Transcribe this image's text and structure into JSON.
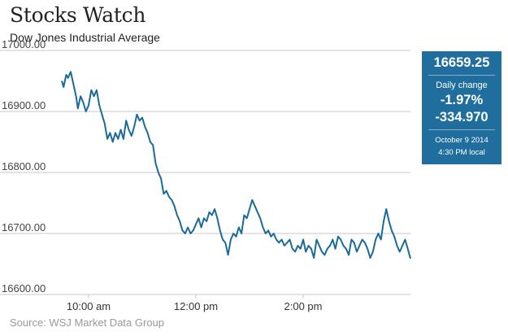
{
  "header": {
    "title": "Stocks Watch",
    "subtitle": "Dow Jones Industrial Average"
  },
  "info_box": {
    "value": "16659.25",
    "change_label": "Daily change",
    "change_percent": "-1.97%",
    "change_points": "-334.970",
    "date": "October 9 2014",
    "time": "4:30 PM local",
    "background_color": "#1f6e9e"
  },
  "source": "Source: WSJ Market Data Group",
  "chart_data": {
    "type": "line",
    "title": "",
    "xlabel": "",
    "ylabel": "",
    "ylim": [
      16600,
      17000
    ],
    "xlim": [
      "9:30 AM",
      "4:00 PM"
    ],
    "grid": "horizontal",
    "legend": "none",
    "line_color": "#1a6a9a",
    "yticks": [
      {
        "value": 17000,
        "label": "17000.00"
      },
      {
        "value": 16900,
        "label": "16900.00"
      },
      {
        "value": 16800,
        "label": "16800.00"
      },
      {
        "value": 16700,
        "label": "16700.00"
      },
      {
        "value": 16600,
        "label": "16600.00"
      }
    ],
    "xticks": [
      {
        "value": "10:00 AM",
        "label": "10:00 am"
      },
      {
        "value": "12:00 PM",
        "label": "12:00 pm"
      },
      {
        "value": "2:00 PM",
        "label": "2:00 pm"
      }
    ],
    "series": [
      {
        "x": [
          "9:30 AM",
          "9:32 AM",
          "9:35 AM",
          "9:37 AM",
          "9:40 AM",
          "9:43 AM",
          "9:46 AM",
          "9:48 AM",
          "9:51 AM",
          "9:54 AM",
          "9:57 AM",
          "10:00 AM",
          "10:03 AM",
          "10:06 AM",
          "10:09 AM",
          "10:12 AM",
          "10:15 AM",
          "10:18 AM",
          "10:21 AM",
          "10:24 AM",
          "10:27 AM",
          "10:30 AM",
          "10:33 AM",
          "10:36 AM",
          "10:39 AM",
          "10:42 AM",
          "10:45 AM",
          "10:48 AM",
          "10:51 AM",
          "10:54 AM",
          "10:57 AM",
          "11:00 AM",
          "11:03 AM",
          "11:06 AM",
          "11:09 AM",
          "11:12 AM",
          "11:15 AM",
          "11:18 AM",
          "11:21 AM",
          "11:24 AM",
          "11:27 AM",
          "11:30 AM",
          "11:33 AM",
          "11:36 AM",
          "11:39 AM",
          "11:42 AM",
          "11:45 AM",
          "11:48 AM",
          "11:51 AM",
          "11:54 AM",
          "11:57 AM",
          "12:00 PM",
          "12:03 PM",
          "12:06 PM",
          "12:09 PM",
          "12:12 PM",
          "12:15 PM",
          "12:18 PM",
          "12:21 PM",
          "12:24 PM",
          "12:27 PM",
          "12:30 PM",
          "12:33 PM",
          "12:36 PM",
          "12:39 PM",
          "12:42 PM",
          "12:45 PM",
          "12:48 PM",
          "12:51 PM",
          "12:54 PM",
          "12:57 PM",
          "1:00 PM",
          "1:03 PM",
          "1:06 PM",
          "1:09 PM",
          "1:12 PM",
          "1:15 PM",
          "1:18 PM",
          "1:21 PM",
          "1:24 PM",
          "1:27 PM",
          "1:30 PM",
          "1:33 PM",
          "1:36 PM",
          "1:39 PM",
          "1:42 PM",
          "1:45 PM",
          "1:48 PM",
          "1:51 PM",
          "1:54 PM",
          "1:57 PM",
          "2:00 PM",
          "2:03 PM",
          "2:06 PM",
          "2:09 PM",
          "2:12 PM",
          "2:15 PM",
          "2:18 PM",
          "2:21 PM",
          "2:24 PM",
          "2:27 PM",
          "2:30 PM",
          "2:33 PM",
          "2:36 PM",
          "2:39 PM",
          "2:42 PM",
          "2:45 PM",
          "2:48 PM",
          "2:51 PM",
          "2:54 PM",
          "2:57 PM",
          "3:00 PM",
          "3:03 PM",
          "3:06 PM",
          "3:09 PM",
          "3:12 PM",
          "3:15 PM",
          "3:18 PM",
          "3:21 PM",
          "3:24 PM",
          "3:27 PM",
          "3:30 PM",
          "3:33 PM",
          "3:36 PM",
          "3:39 PM",
          "3:42 PM",
          "3:45 PM",
          "3:48 PM",
          "3:51 PM",
          "3:54 PM",
          "3:57 PM",
          "4:00 PM"
        ],
        "values": [
          16950,
          16940,
          16960,
          16955,
          16965,
          16945,
          16925,
          16905,
          16925,
          16915,
          16900,
          16910,
          16935,
          16925,
          16935,
          16910,
          16895,
          16880,
          16855,
          16865,
          16850,
          16865,
          16855,
          16870,
          16855,
          16885,
          16870,
          16860,
          16875,
          16895,
          16885,
          16890,
          16875,
          16865,
          16850,
          16845,
          16815,
          16800,
          16790,
          16765,
          16770,
          16760,
          16755,
          16745,
          16730,
          16720,
          16705,
          16700,
          16710,
          16700,
          16705,
          16715,
          16725,
          16710,
          16725,
          16720,
          16735,
          16730,
          16740,
          16725,
          16705,
          16690,
          16685,
          16665,
          16690,
          16700,
          16695,
          16710,
          16700,
          16730,
          16725,
          16740,
          16755,
          16745,
          16735,
          16725,
          16710,
          16700,
          16705,
          16695,
          16700,
          16690,
          16685,
          16690,
          16680,
          16685,
          16690,
          16675,
          16670,
          16680,
          16675,
          16690,
          16670,
          16680,
          16675,
          16660,
          16690,
          16680,
          16670,
          16665,
          16675,
          16680,
          16690,
          16675,
          16695,
          16690,
          16680,
          16675,
          16665,
          16690,
          16685,
          16670,
          16680,
          16690,
          16685,
          16675,
          16660,
          16670,
          16690,
          16700,
          16690,
          16720,
          16740,
          16720,
          16705,
          16695,
          16680,
          16670,
          16680,
          16690,
          16675,
          16659
        ]
      }
    ]
  }
}
